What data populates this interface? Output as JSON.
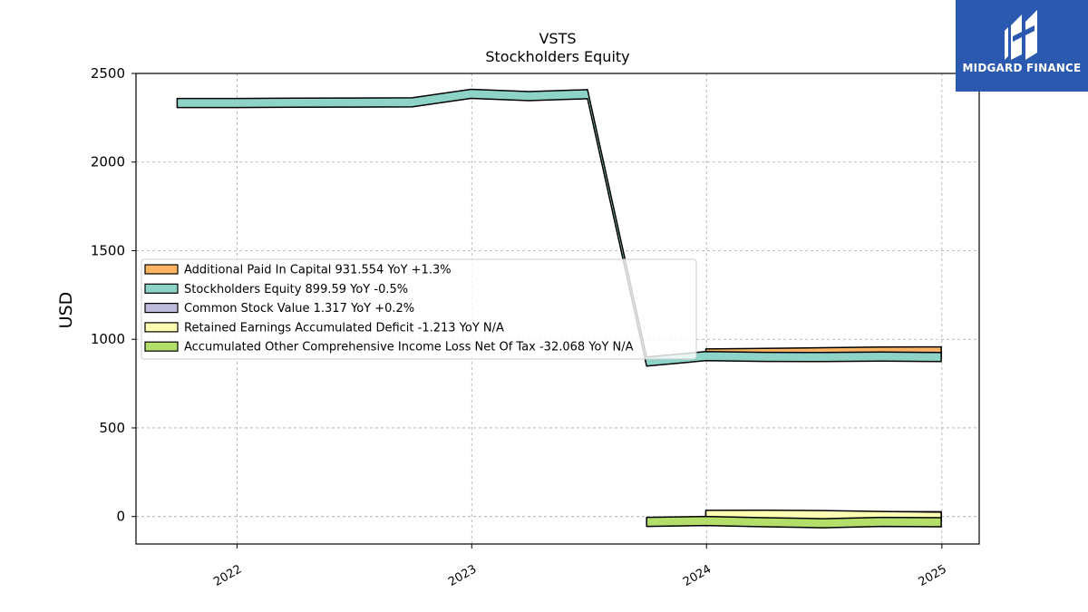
{
  "chart_data": {
    "type": "area",
    "title": "VSTS",
    "subtitle": "Stockholders  Equity",
    "xlabel": "",
    "ylabel": "USD",
    "ylim": [
      -155,
      2500
    ],
    "xlim": [
      "2021-07-28",
      "2025-02-28"
    ],
    "yticks": [
      0,
      500,
      1000,
      1500,
      2000,
      2500
    ],
    "xticks": [
      "2022",
      "2023",
      "2024",
      "2025"
    ],
    "grid": true,
    "legend_position": "center-left",
    "series": [
      {
        "name": "Additional Paid In Capital  931.554 YoY +1.3%",
        "color": "#fdb462",
        "x": [
          "2023-12-31",
          "2024-03-31",
          "2024-06-30",
          "2024-09-30",
          "2024-12-31"
        ],
        "values": [
          919.8,
          923.5,
          927.1,
          930.8,
          931.554
        ]
      },
      {
        "name": "Stockholders Equity  899.59 YoY -0.5%",
        "color": "#8dd3c7",
        "x": [
          "2021-09-30",
          "2021-12-31",
          "2022-03-31",
          "2022-06-30",
          "2022-09-30",
          "2022-12-31",
          "2023-03-31",
          "2023-06-30",
          "2023-09-30",
          "2023-12-31",
          "2024-03-31",
          "2024-06-30",
          "2024-09-30",
          "2024-12-31"
        ],
        "values": [
          2333,
          2333,
          2335,
          2336,
          2337,
          2385,
          2372,
          2383,
          875,
          905,
          901,
          900,
          903,
          899.59
        ]
      },
      {
        "name": "Common Stock Value  1.317 YoY +0.2%",
        "color": "#bebada",
        "x": [
          "2023-12-31",
          "2024-03-31",
          "2024-06-30",
          "2024-09-30",
          "2024-12-31"
        ],
        "values": [
          1.314,
          1.315,
          1.316,
          1.316,
          1.317
        ]
      },
      {
        "name": "Retained Earnings Accumulated Deficit  -1.213 YoY N/A",
        "color": "#ffffb3",
        "x": [
          "2023-12-31",
          "2024-03-31",
          "2024-06-30",
          "2024-09-30",
          "2024-12-31"
        ],
        "values": [
          9,
          10,
          8,
          3,
          -1.213
        ]
      },
      {
        "name": "Accumulated Other Comprehensive Income Loss Net Of Tax  -32.068 YoY N/A",
        "color": "#b3de69",
        "x": [
          "2023-09-30",
          "2023-12-31",
          "2024-03-31",
          "2024-06-30",
          "2024-09-30",
          "2024-12-31"
        ],
        "values": [
          -30,
          -25,
          -32,
          -38,
          -30,
          -32.068
        ]
      }
    ]
  },
  "logo": {
    "text": "MIDGARD FINANCE",
    "background": "#2b59b0"
  }
}
